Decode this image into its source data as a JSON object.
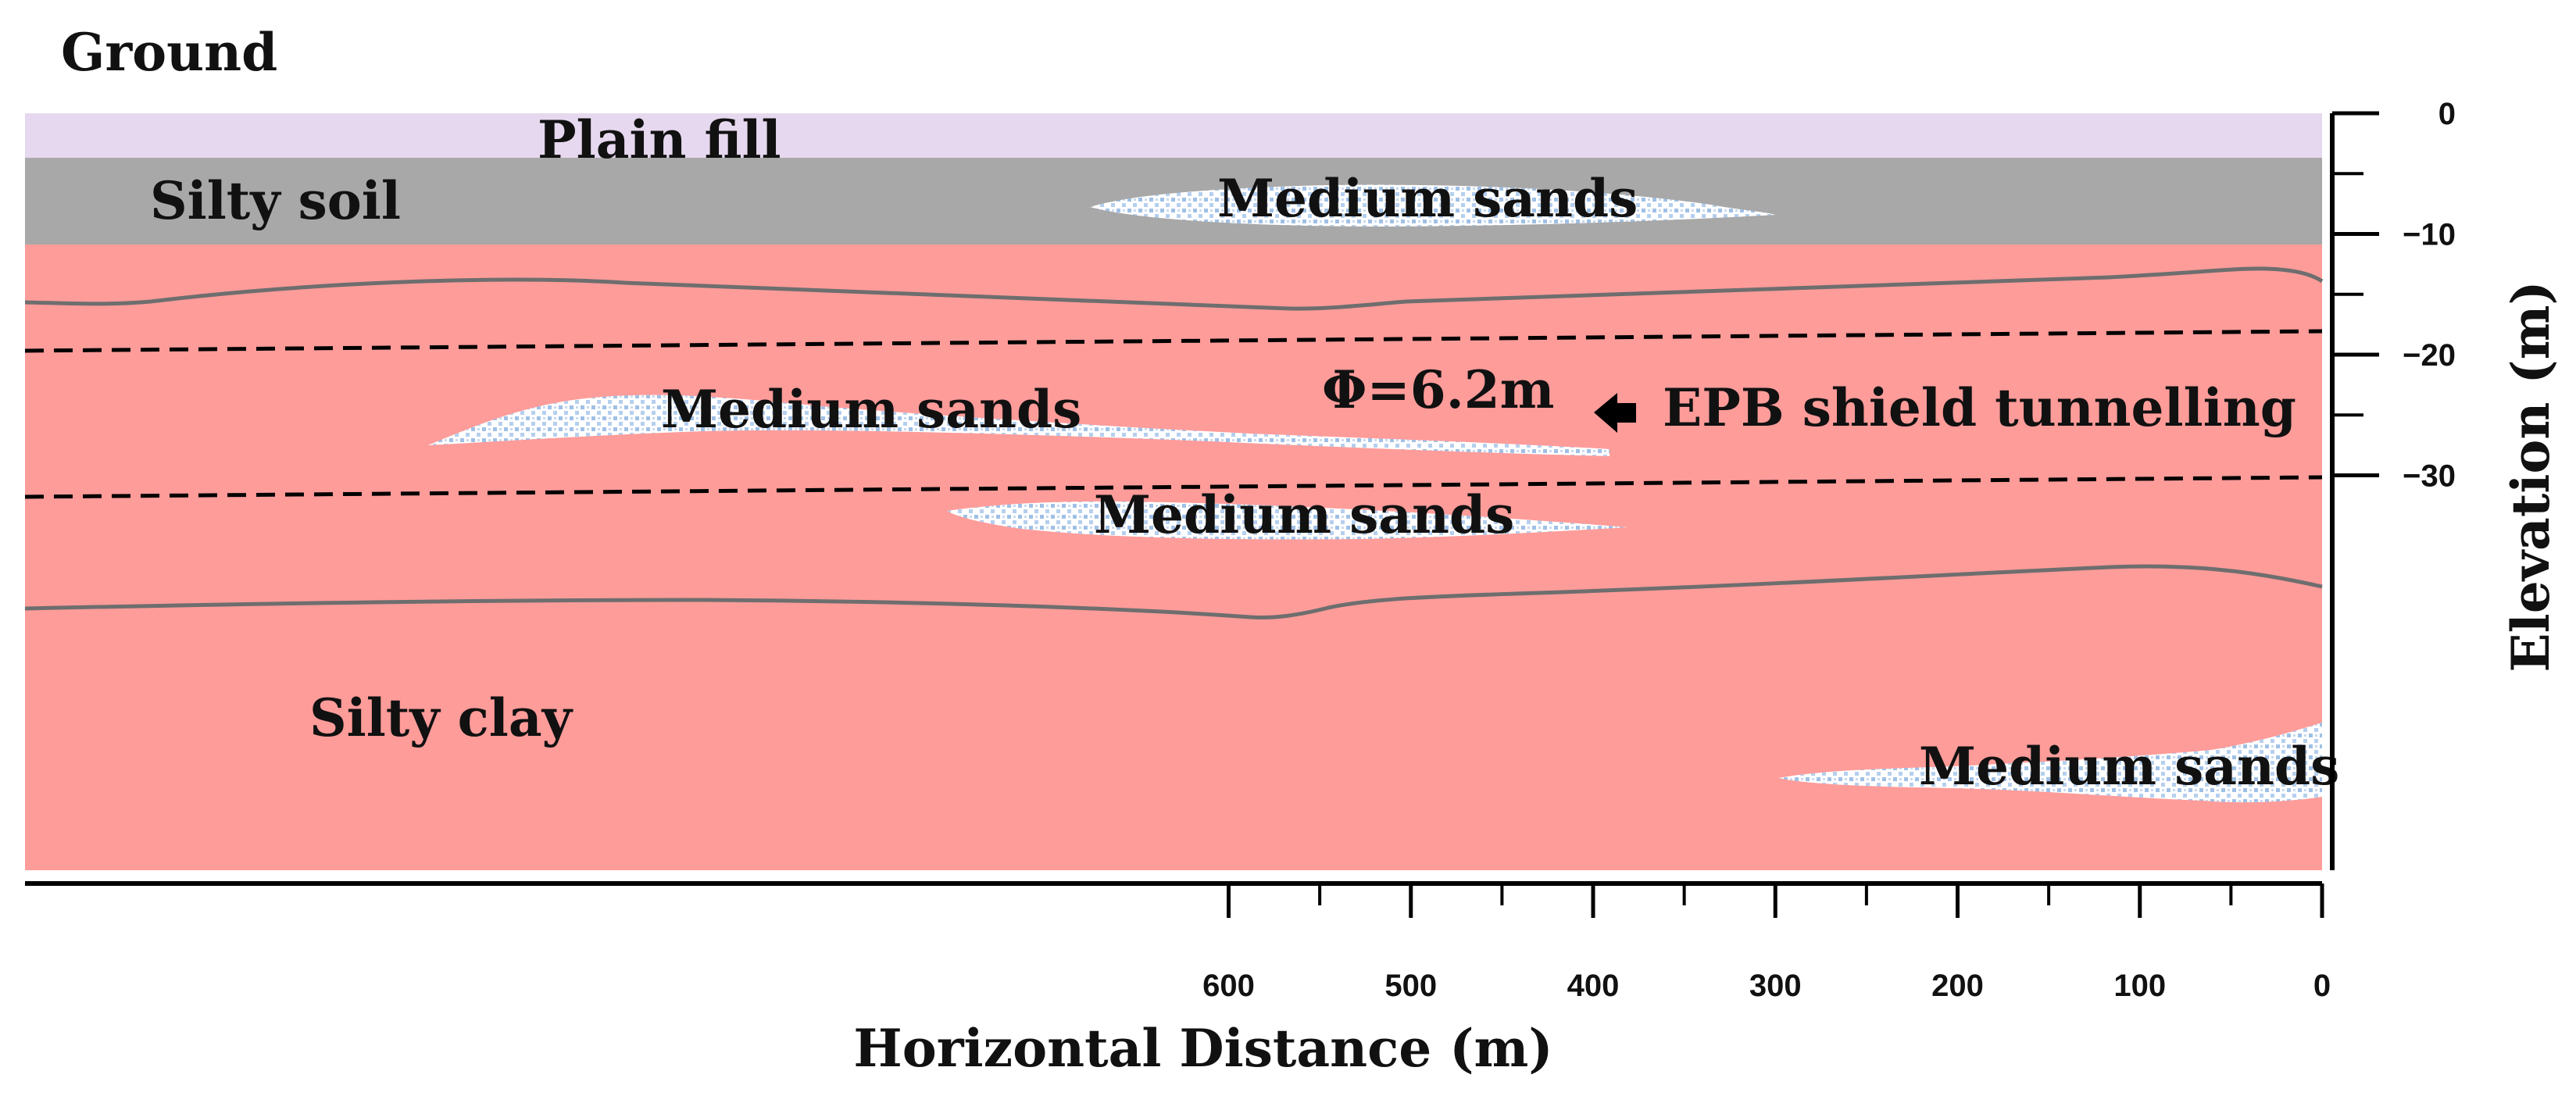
{
  "labels": {
    "ground": "Ground",
    "plain_fill": "Plain fill",
    "silty_soil": "Silty soil",
    "silty_clay": "Silty clay",
    "sand_lens_1": "Medium sands",
    "sand_lens_2": "Medium sands",
    "sand_lens_3": "Medium sands",
    "sand_lens_4": "Medium sands",
    "tunnel_diameter": "Φ=6.2m",
    "tunnel_method": "EPB shield tunnelling"
  },
  "axes": {
    "x": {
      "title": "Horizontal Distance (m)",
      "range": [
        630,
        0
      ],
      "reversed": true,
      "major_ticks": [
        "600",
        "500",
        "400",
        "300",
        "200",
        "100",
        "0"
      ],
      "major_values": [
        600,
        500,
        400,
        300,
        200,
        100,
        0
      ],
      "minor_values": [
        550,
        450,
        350,
        250,
        150,
        50
      ]
    },
    "y": {
      "title": "Elevation (m)",
      "range": [
        0,
        -31
      ],
      "major_ticks": [
        "0",
        "−10",
        "−20",
        "−30"
      ],
      "major_values": [
        0,
        -10,
        -20,
        -30
      ],
      "minor_values": [
        -5,
        -15,
        -25
      ]
    }
  },
  "colors": {
    "plain_fill": "#e6d8ee",
    "silty_soil": "#a8a8a8",
    "silty_clay": "#fe9c9a",
    "sand_dot": "#a9c5e8",
    "boundary_line": "#707070"
  }
}
